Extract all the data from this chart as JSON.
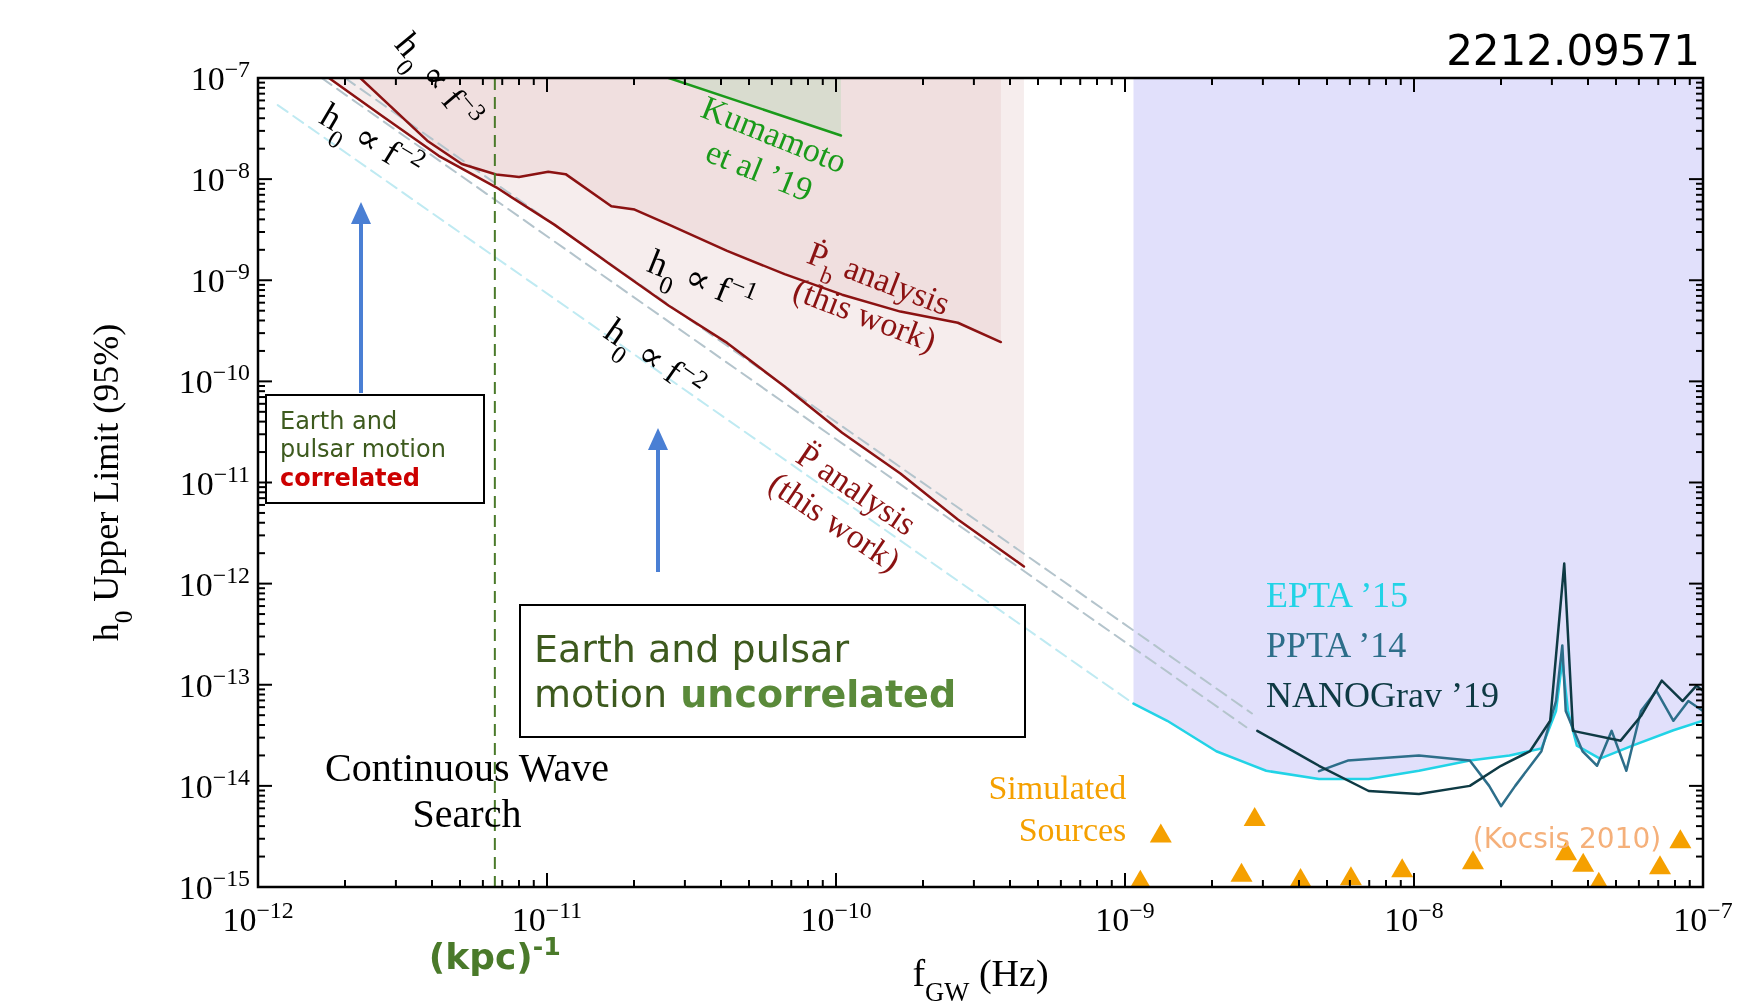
{
  "chart_data": {
    "type": "line",
    "xlabel": "f$_{GW}$ (Hz)",
    "ylabel": "h$_{0}$ Upper Limit (95%)",
    "log": "xy",
    "grid": false,
    "legend": "right",
    "xlim": [
      1e-12,
      1e-07
    ],
    "ylim": [
      1e-15,
      1e-07
    ],
    "xticks": [
      {
        "value": 1e-12,
        "label": "10$^{−12}$"
      },
      {
        "value": 1e-11,
        "label": "10$^{−11}$"
      },
      {
        "value": 1e-10,
        "label": "10$^{−10}$"
      },
      {
        "value": 1e-09,
        "label": "10$^{−9}$"
      },
      {
        "value": 1e-08,
        "label": "10$^{−8}$"
      },
      {
        "value": 1e-07,
        "label": "10$^{−7}$"
      }
    ],
    "yticks": [
      {
        "value": 1e-15,
        "label": "10$^{−15}$"
      },
      {
        "value": 1e-14,
        "label": "10$^{−14}$"
      },
      {
        "value": 1e-13,
        "label": "10$^{−13}$"
      },
      {
        "value": 1e-12,
        "label": "10$^{−12}$"
      },
      {
        "value": 1e-11,
        "label": "10$^{−11}$"
      },
      {
        "value": 1e-10,
        "label": "10$^{−10}$"
      },
      {
        "value": 1e-09,
        "label": "10$^{−9}$"
      },
      {
        "value": 1e-08,
        "label": "10$^{−8}$"
      },
      {
        "value": 1e-07,
        "label": "10$^{−7}$"
      }
    ],
    "ref_lines": [
      {
        "axis": "x",
        "value": 6.6e-12,
        "label": "(kpc)$^{-1}$",
        "color": "#4a7a2a",
        "line_style": "dashed"
      }
    ],
    "annotations": [
      "2212.09571",
      "h$_{0}$ ∝ f$^{−3}$",
      "h$_{0}$ ∝ f$^{−2}$",
      "h$_{0}$ ∝ f$^{−1}$",
      "h$_{0}$ ∝ f$^{−2}$",
      "Kumamoto\net al ’19",
      "Ṗ$_{b}$ analysis\n(this work)",
      "P̈ analysis\n(this work)",
      "Earth and pulsar motion correlated",
      "Earth and pulsar motion uncorrelated",
      "Continuous Wave Search",
      "(Kocsis 2010)"
    ],
    "series": [
      {
        "color": "#bfeaf2",
        "line_style": "dashed",
        "x": [
          1.17e-12,
          1.07e-09
        ],
        "values": [
          5.4e-08,
          6.5e-14
        ]
      },
      {
        "color": "#b4c4cc",
        "line_style": "dashed",
        "x": [
          1.66e-12,
          2.63e-09
        ],
        "values": [
          1e-07,
          3.8e-14
        ]
      },
      {
        "color": "#b4c4cc",
        "line_style": "dashed",
        "x": [
          2e-12,
          2.75e-09
        ],
        "values": [
          1e-07,
          5.2e-14
        ]
      },
      {
        "color": "#1a9a1a",
        "x": [
          2.64e-11,
          1.04e-10
        ],
        "values": [
          1e-07,
          2.7e-08
        ]
      },
      {
        "color": "#8b1212",
        "x": [
          2.26e-12,
          3.85e-12,
          5.07e-12,
          6.67e-12,
          8e-12,
          1.01e-11,
          1.16e-11,
          1.67e-11,
          2.01e-11,
          2.64e-11,
          4.2e-11,
          6.64e-11,
          1.05e-10,
          1.67e-10,
          2.64e-10,
          3.72e-10
        ],
        "values": [
          1e-07,
          2.4e-08,
          1.41e-08,
          1.11e-08,
          1.05e-08,
          1.18e-08,
          1.12e-08,
          5.4e-09,
          5e-09,
          3.55e-09,
          1.95e-09,
          1.15e-09,
          7.2e-10,
          4.9e-10,
          3.8e-10,
          2.45e-10
        ]
      },
      {
        "color": "#8b1212",
        "x": [
          1.76e-12,
          2.66e-12,
          4.22e-12,
          6.67e-12,
          1.06e-11,
          1.67e-11,
          2.64e-11,
          4.2e-11,
          6.64e-11,
          1.05e-10,
          1.67e-10,
          2.64e-10,
          4.47e-10
        ],
        "values": [
          1e-07,
          4.3e-08,
          1.7e-08,
          8.3e-09,
          3.55e-09,
          1.41e-09,
          5.6e-10,
          2.4e-10,
          8.9e-11,
          3.1e-11,
          1.23e-11,
          4.3e-12,
          1.48e-12
        ]
      },
      {
        "name": "EPTA ’15",
        "color": "#22d3e6",
        "x": [
          1.07e-09,
          1.4e-09,
          2.07e-09,
          3.08e-09,
          4.69e-09,
          6.97e-09,
          1.04e-08,
          1.56e-08,
          2.14e-08,
          2.76e-08,
          3.1e-08,
          3.26e-08,
          3.41e-08,
          3.66e-08,
          4.4e-08,
          5.7e-08,
          7.9e-08,
          1e-07
        ],
        "values": [
          6.5e-14,
          4.4e-14,
          2.2e-14,
          1.41e-14,
          1.17e-14,
          1.17e-14,
          1.41e-14,
          1.78e-14,
          2e-14,
          2.34e-14,
          5.5e-14,
          1.74e-13,
          5.5e-14,
          2.5e-14,
          1.86e-14,
          2.5e-14,
          3.55e-14,
          4.4e-14
        ]
      },
      {
        "name": "PPTA ’14",
        "color": "#2d6e8a",
        "x": [
          4.69e-09,
          5.9e-09,
          1.04e-08,
          1.56e-08,
          1.82e-08,
          2e-08,
          2.24e-08,
          2.76e-08,
          3.1e-08,
          3.26e-08,
          3.35e-08,
          3.83e-08,
          4.3e-08,
          4.83e-08,
          5.43e-08,
          6.1e-08,
          6.9e-08,
          7.9e-08,
          8.9e-08,
          1e-07
        ],
        "values": [
          1.4e-14,
          1.78e-14,
          2e-14,
          1.78e-14,
          1e-14,
          6.3e-15,
          1e-14,
          2.2e-14,
          6.9e-14,
          2.45e-13,
          5.5e-14,
          2.2e-14,
          1.58e-14,
          3.5e-14,
          1.41e-14,
          5.5e-14,
          8.7e-14,
          4.4e-14,
          6.9e-14,
          5.5e-14
        ]
      },
      {
        "name": "NANOGrav ’19",
        "color": "#0e3a44",
        "x": [
          2.87e-09,
          4.69e-09,
          6.97e-09,
          1.04e-08,
          1.56e-08,
          2e-08,
          2.52e-08,
          2.96e-08,
          3.31e-08,
          3.55e-08,
          5.19e-08,
          6.1e-08,
          7.2e-08,
          8.5e-08,
          9.5e-08,
          1e-07
        ],
        "values": [
          3.5e-14,
          1.58e-14,
          8.9e-15,
          8.3e-15,
          1e-14,
          1.58e-14,
          2.2e-14,
          4.4e-14,
          1.58e-12,
          3.5e-14,
          2.8e-14,
          4.9e-14,
          1.1e-13,
          6.9e-14,
          9.8e-14,
          8.7e-14
        ]
      },
      {
        "type": "scatter",
        "name": "Simulated Sources",
        "color": "#f5a000",
        "marker": "triangle",
        "x": [
          1.13e-09,
          1.33e-09,
          2.53e-09,
          2.81e-09,
          4.05e-09,
          6.05e-09,
          9.1e-09,
          1.6e-08,
          3.36e-08,
          3.85e-08,
          4.36e-08,
          7.1e-08,
          8.35e-08
        ],
        "values": [
          1.15e-15,
          3.3e-15,
          1.35e-15,
          4.8e-15,
          1.2e-15,
          1.25e-15,
          1.5e-15,
          1.8e-15,
          2.2e-15,
          1.7e-15,
          1.1e-15,
          1.6e-15,
          2.9e-15
        ]
      }
    ]
  }
}
